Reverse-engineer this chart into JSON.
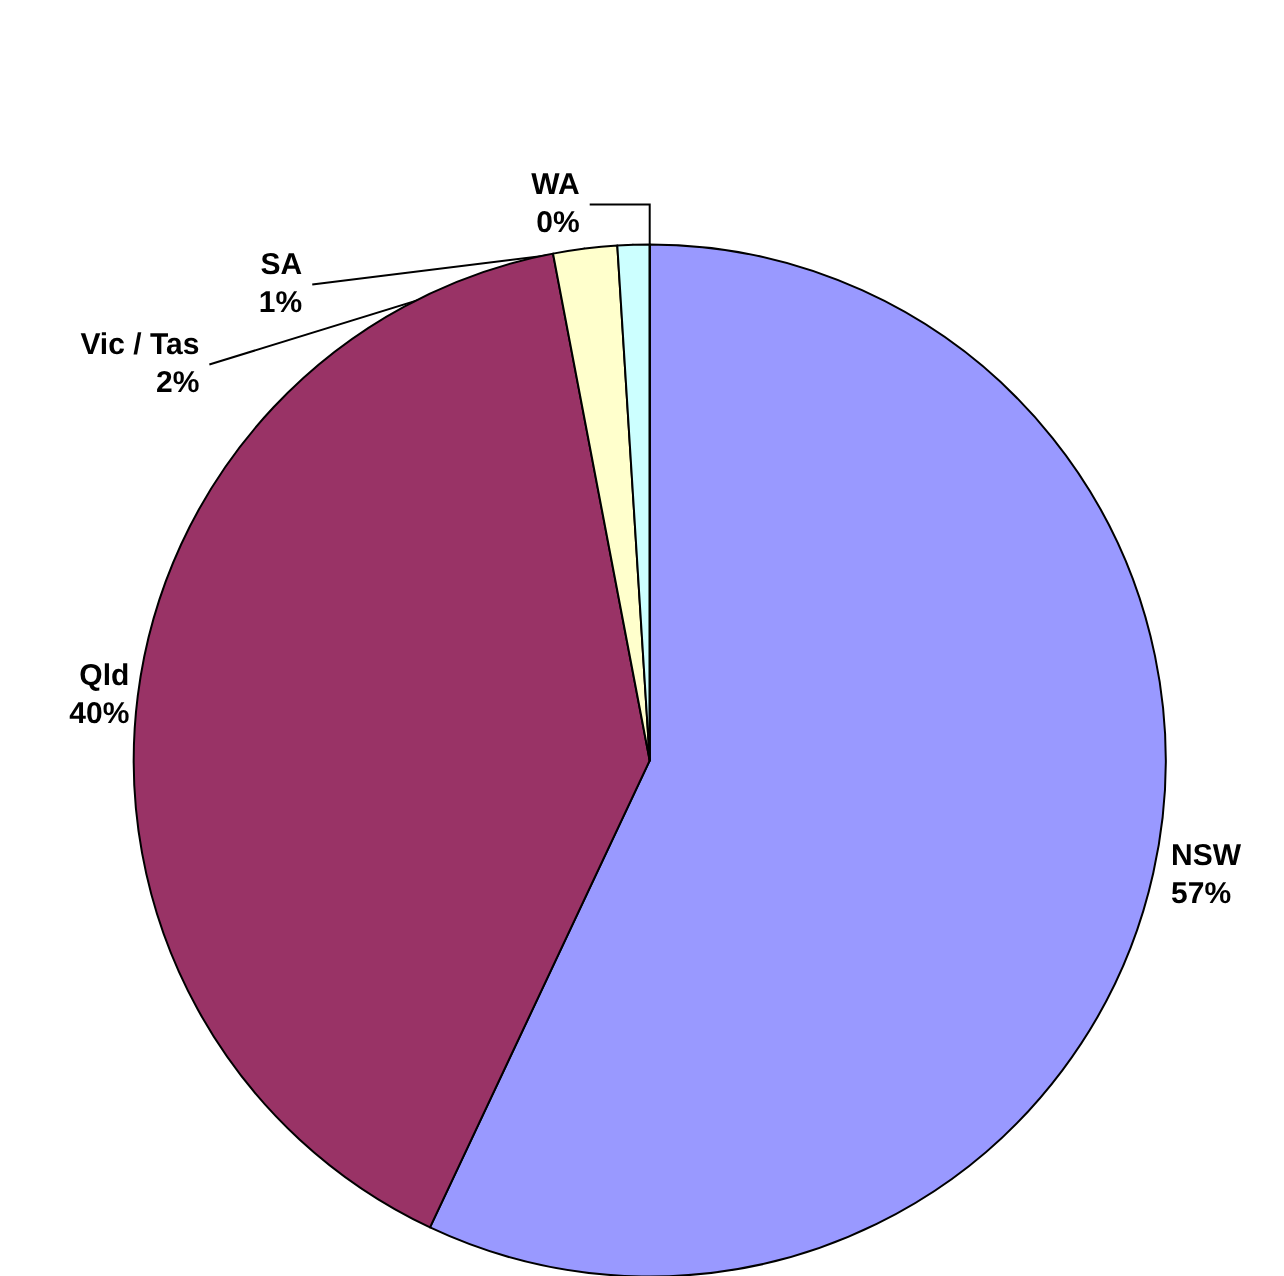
{
  "chart_data": {
    "type": "pie",
    "categories": [
      "NSW",
      "Qld",
      "Vic / Tas",
      "SA",
      "WA"
    ],
    "values": [
      57,
      40,
      2,
      1,
      0
    ],
    "colors": [
      "#9999ff",
      "#993366",
      "#ffffcc",
      "#ccffff",
      "#660066"
    ],
    "value_labels": [
      "57%",
      "40%",
      "2%",
      "1%",
      "0%"
    ],
    "legend": false
  }
}
